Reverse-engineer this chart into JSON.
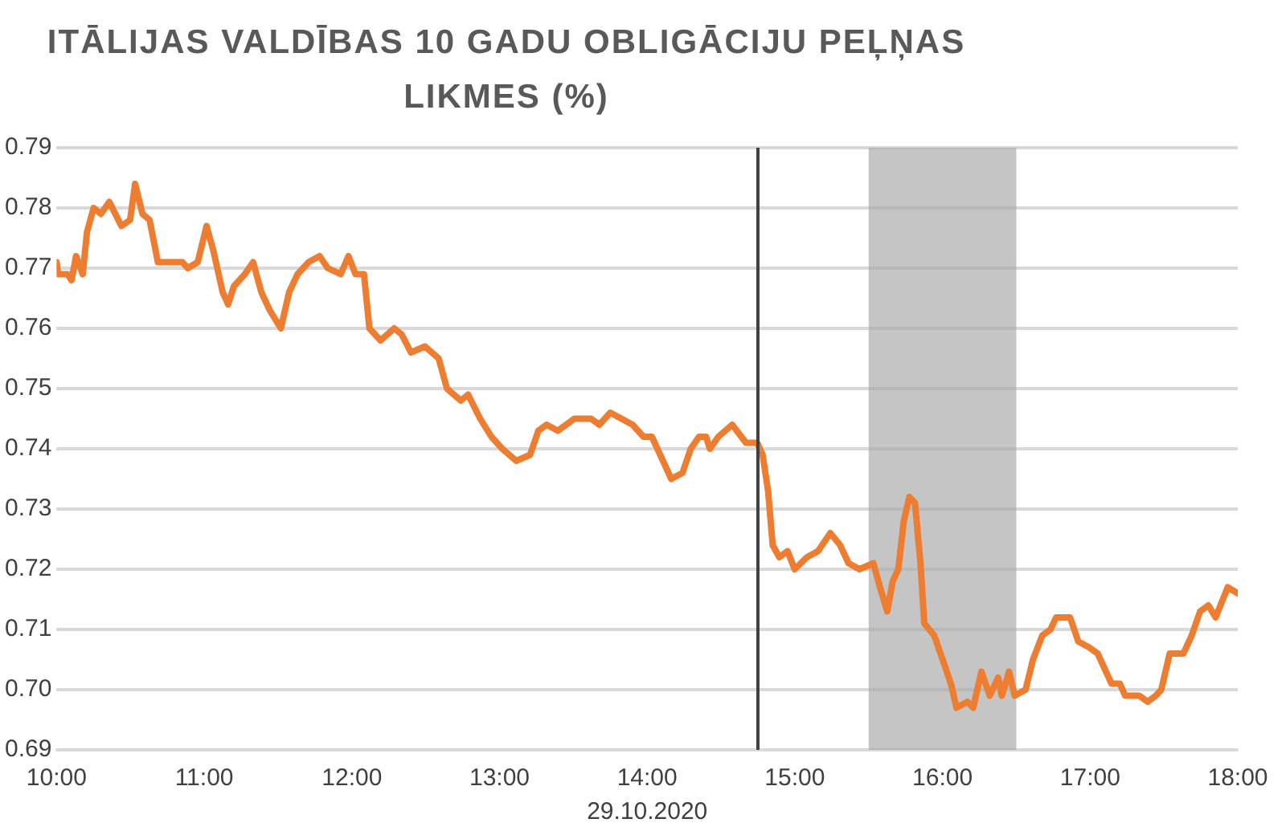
{
  "chart_data": {
    "type": "line",
    "title": "ITĀLIJAS VALDĪBAS 10 GADU OBLIGĀCIJU PEĻŅAS LIKMES (%)",
    "xlabel": "29.10.2020",
    "xlim": [
      10,
      18
    ],
    "xticks": [
      {
        "value": 10,
        "label": "10:00"
      },
      {
        "value": 11,
        "label": "11:00"
      },
      {
        "value": 12,
        "label": "12:00"
      },
      {
        "value": 13,
        "label": "13:00"
      },
      {
        "value": 14,
        "label": "14:00"
      },
      {
        "value": 15,
        "label": "15:00"
      },
      {
        "value": 16,
        "label": "16:00"
      },
      {
        "value": 17,
        "label": "17:00"
      },
      {
        "value": 18,
        "label": "18:00"
      }
    ],
    "ylim": [
      0.69,
      0.79
    ],
    "yticks": [
      0.69,
      {
        "value": 0.7,
        "label": "0.70"
      },
      0.71,
      0.72,
      0.73,
      0.74,
      0.75,
      0.76,
      0.77,
      0.78,
      0.79
    ],
    "grid": "y",
    "legend": false,
    "marker": "none",
    "line_style": "solid",
    "ref_lines": [
      {
        "axis": "x",
        "value": 14.75,
        "label": null,
        "color": "#404040"
      }
    ],
    "bands": [
      {
        "axis": "x",
        "from": 15.5,
        "to": 16.5,
        "label": null,
        "color": "#a6a6a6"
      }
    ],
    "series": [
      {
        "color": "#ed7d31",
        "x": [
          10.0,
          10.011,
          10.075,
          10.101,
          10.132,
          10.177,
          10.206,
          10.251,
          10.3,
          10.357,
          10.439,
          10.498,
          10.532,
          10.582,
          10.63,
          10.686,
          10.769,
          10.852,
          10.889,
          10.956,
          11.016,
          11.061,
          11.125,
          11.162,
          11.201,
          11.275,
          11.331,
          11.387,
          11.444,
          11.519,
          11.575,
          11.632,
          11.707,
          11.781,
          11.837,
          11.924,
          11.977,
          12.025,
          12.082,
          12.119,
          12.194,
          12.287,
          12.337,
          12.4,
          12.495,
          12.588,
          12.644,
          12.738,
          12.787,
          12.869,
          12.945,
          13.019,
          13.113,
          13.207,
          13.263,
          13.319,
          13.395,
          13.507,
          13.62,
          13.676,
          13.75,
          13.826,
          13.901,
          13.975,
          14.032,
          14.107,
          14.163,
          14.239,
          14.295,
          14.351,
          14.399,
          14.425,
          14.482,
          14.576,
          14.669,
          14.745,
          14.782,
          14.819,
          14.85,
          14.895,
          14.951,
          14.999,
          15.082,
          15.157,
          15.24,
          15.307,
          15.364,
          15.438,
          15.532,
          15.577,
          15.626,
          15.663,
          15.701,
          15.738,
          15.776,
          15.814,
          15.851,
          15.877,
          15.944,
          16.001,
          16.057,
          16.095,
          16.169,
          16.208,
          16.264,
          16.32,
          16.377,
          16.402,
          16.451,
          16.489,
          16.563,
          16.613,
          16.676,
          16.732,
          16.77,
          16.864,
          16.92,
          16.995,
          17.051,
          17.145,
          17.201,
          17.238,
          17.333,
          17.389,
          17.445,
          17.482,
          17.539,
          17.632,
          17.688,
          17.745,
          17.801,
          17.85,
          17.932,
          18.0
        ],
        "values": [
          0.771,
          0.769,
          0.769,
          0.768,
          0.772,
          0.769,
          0.776,
          0.78,
          0.779,
          0.781,
          0.777,
          0.778,
          0.784,
          0.779,
          0.778,
          0.771,
          0.771,
          0.771,
          0.77,
          0.771,
          0.777,
          0.773,
          0.766,
          0.764,
          0.767,
          0.769,
          0.771,
          0.766,
          0.763,
          0.76,
          0.766,
          0.769,
          0.771,
          0.772,
          0.77,
          0.769,
          0.772,
          0.769,
          0.769,
          0.76,
          0.758,
          0.76,
          0.759,
          0.756,
          0.757,
          0.755,
          0.75,
          0.748,
          0.749,
          0.745,
          0.742,
          0.74,
          0.738,
          0.739,
          0.743,
          0.744,
          0.743,
          0.745,
          0.745,
          0.744,
          0.746,
          0.745,
          0.744,
          0.742,
          0.742,
          0.738,
          0.735,
          0.736,
          0.74,
          0.742,
          0.742,
          0.74,
          0.742,
          0.744,
          0.741,
          0.741,
          0.739,
          0.733,
          0.724,
          0.722,
          0.723,
          0.72,
          0.722,
          0.723,
          0.726,
          0.724,
          0.721,
          0.72,
          0.721,
          0.717,
          0.713,
          0.718,
          0.72,
          0.728,
          0.732,
          0.731,
          0.721,
          0.711,
          0.709,
          0.705,
          0.701,
          0.697,
          0.698,
          0.697,
          0.703,
          0.699,
          0.702,
          0.699,
          0.703,
          0.699,
          0.7,
          0.705,
          0.709,
          0.71,
          0.712,
          0.712,
          0.708,
          0.707,
          0.706,
          0.701,
          0.701,
          0.699,
          0.699,
          0.698,
          0.699,
          0.7,
          0.706,
          0.706,
          0.709,
          0.713,
          0.714,
          0.712,
          0.717,
          0.716
        ]
      }
    ]
  }
}
